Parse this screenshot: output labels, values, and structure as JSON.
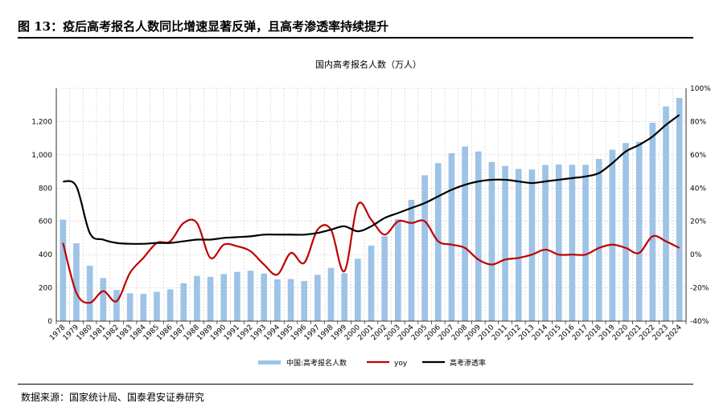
{
  "figure": {
    "title": "图 13：疫后高考报名人数同比增速显著反弹，且高考渗透率持续提升",
    "source": "数据来源：国家统计局、国泰君安证券研究"
  },
  "colors": {
    "bar": "#9dc3e6",
    "yoy": "#c00000",
    "penetration": "#000000",
    "grid": "#c8c8c8"
  },
  "chart_data": {
    "type": "bar",
    "title": "国内高考报名人数（万人）",
    "categories": [
      "1978",
      "1979",
      "1980",
      "1981",
      "1982",
      "1983",
      "1984",
      "1985",
      "1986",
      "1987",
      "1988",
      "1989",
      "1990",
      "1991",
      "1992",
      "1993",
      "1994",
      "1995",
      "1996",
      "1997",
      "1998",
      "1999",
      "2000",
      "2001",
      "2002",
      "2003",
      "2004",
      "2005",
      "2006",
      "2007",
      "2008",
      "2009",
      "2010",
      "2011",
      "2012",
      "2013",
      "2014",
      "2015",
      "2016",
      "2017",
      "2018",
      "2019",
      "2020",
      "2021",
      "2022",
      "2023",
      "2024"
    ],
    "series": [
      {
        "name": "中国:高考报名人数",
        "type": "bar",
        "axis": "left",
        "values": [
          610,
          468,
          333,
          259,
          187,
          167,
          164,
          176,
          191,
          228,
          272,
          266,
          283,
          296,
          303,
          286,
          251,
          253,
          241,
          278,
          320,
          288,
          375,
          454,
          510,
          613,
          729,
          877,
          950,
          1010,
          1050,
          1020,
          957,
          933,
          915,
          912,
          939,
          942,
          940,
          940,
          975,
          1031,
          1071,
          1078,
          1193,
          1291,
          1342
        ]
      },
      {
        "name": "yoy",
        "type": "line",
        "axis": "right",
        "values": [
          7,
          -23,
          -29,
          -22,
          -28,
          -11,
          -2,
          7,
          8,
          19,
          19,
          -2,
          6,
          5,
          2,
          -6,
          -12,
          1,
          -5,
          15,
          15,
          -10,
          30,
          21,
          12,
          20,
          19,
          20,
          8,
          6,
          4,
          -3,
          -6,
          -3,
          -2,
          0,
          3,
          0,
          0,
          0,
          4,
          6,
          4,
          1,
          11,
          8,
          4
        ]
      },
      {
        "name": "高考渗透率",
        "type": "line",
        "axis": "right",
        "values": [
          44,
          41,
          13,
          9,
          7,
          6.5,
          6.5,
          7,
          7,
          8,
          9,
          9,
          10,
          10.5,
          11,
          12,
          12,
          12,
          12,
          13,
          15,
          17,
          14,
          17,
          22,
          25,
          28,
          31,
          35,
          39,
          42,
          44,
          45,
          45,
          44,
          43,
          44,
          45,
          46,
          47,
          49,
          55,
          62,
          66,
          71,
          78,
          84
        ]
      }
    ],
    "y_left": {
      "range": [
        0,
        1400
      ],
      "ticks": [
        "0",
        "200",
        "400",
        "600",
        "800",
        "1,000",
        "1,200"
      ]
    },
    "y_right": {
      "range": [
        -40,
        100
      ],
      "ticks": [
        "-40%",
        "-20%",
        "0%",
        "20%",
        "40%",
        "60%",
        "80%",
        "100%"
      ]
    },
    "grid": true,
    "legend_position": "bottom"
  }
}
